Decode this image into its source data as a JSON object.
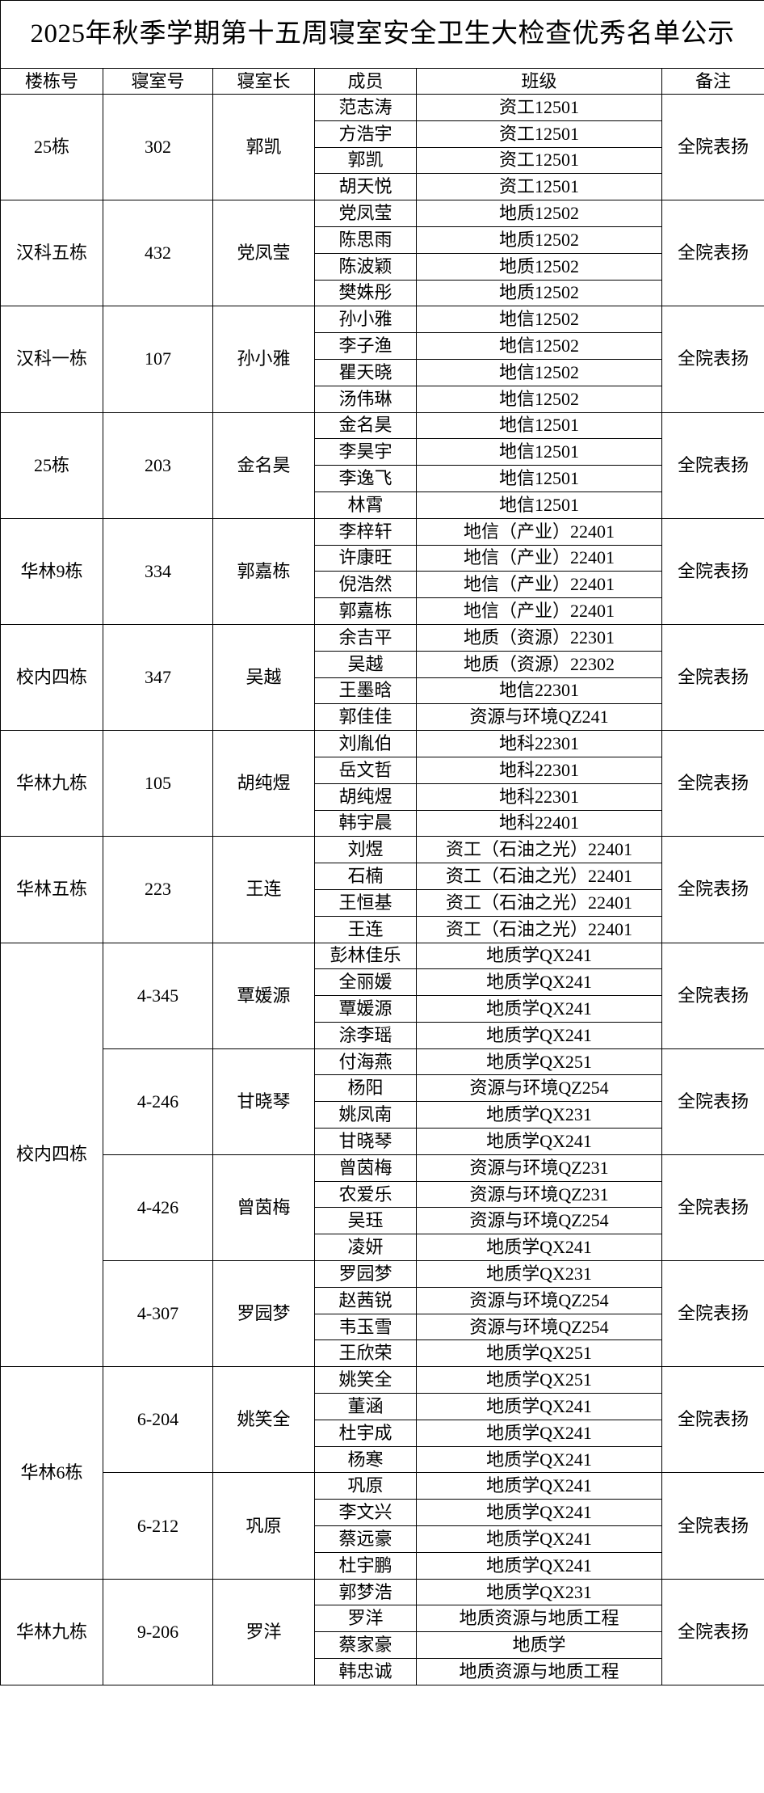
{
  "title": "2025年秋季学期第十五周寝室安全卫生大检查优秀名单公示",
  "headers": [
    "楼栋号",
    "寝室号",
    "寝室长",
    "成员",
    "班级",
    "备注"
  ],
  "buildings": [
    {
      "name": "25栋",
      "rooms": [
        {
          "number": "302",
          "leader": "郭凯",
          "remark": "全院表扬",
          "members": [
            {
              "name": "范志涛",
              "class": "资工12501"
            },
            {
              "name": "方浩宇",
              "class": "资工12501"
            },
            {
              "name": "郭凯",
              "class": "资工12501"
            },
            {
              "name": "胡天悦",
              "class": "资工12501"
            }
          ]
        }
      ]
    },
    {
      "name": "汉科五栋",
      "rooms": [
        {
          "number": "432",
          "leader": "党凤莹",
          "remark": "全院表扬",
          "members": [
            {
              "name": "党凤莹",
              "class": "地质12502"
            },
            {
              "name": "陈思雨",
              "class": "地质12502"
            },
            {
              "name": "陈波颖",
              "class": "地质12502"
            },
            {
              "name": "樊姝彤",
              "class": "地质12502"
            }
          ]
        }
      ]
    },
    {
      "name": "汉科一栋",
      "rooms": [
        {
          "number": "107",
          "leader": "孙小雅",
          "remark": "全院表扬",
          "members": [
            {
              "name": "孙小雅",
              "class": "地信12502"
            },
            {
              "name": "李子渔",
              "class": "地信12502"
            },
            {
              "name": "瞿天晓",
              "class": "地信12502"
            },
            {
              "name": "汤伟琳",
              "class": "地信12502"
            }
          ]
        }
      ]
    },
    {
      "name": "25栋",
      "rooms": [
        {
          "number": "203",
          "leader": "金名昊",
          "remark": "全院表扬",
          "members": [
            {
              "name": "金名昊",
              "class": "地信12501"
            },
            {
              "name": "李昊宇",
              "class": "地信12501"
            },
            {
              "name": "李逸飞",
              "class": "地信12501"
            },
            {
              "name": "林霄",
              "class": "地信12501"
            }
          ]
        }
      ]
    },
    {
      "name": "华林9栋",
      "rooms": [
        {
          "number": "334",
          "leader": "郭嘉栋",
          "remark": "全院表扬",
          "members": [
            {
              "name": "李梓轩",
              "class": "地信（产业）22401"
            },
            {
              "name": "许康旺",
              "class": "地信（产业）22401"
            },
            {
              "name": "倪浩然",
              "class": "地信（产业）22401"
            },
            {
              "name": "郭嘉栋",
              "class": "地信（产业）22401"
            }
          ]
        }
      ]
    },
    {
      "name": "校内四栋",
      "rooms": [
        {
          "number": "347",
          "leader": "吴越",
          "remark": "全院表扬",
          "members": [
            {
              "name": "余吉平",
              "class": "地质（资源）22301"
            },
            {
              "name": "吴越",
              "class": "地质（资源）22302"
            },
            {
              "name": "王墨晗",
              "class": "地信22301"
            },
            {
              "name": "郭佳佳",
              "class": "资源与环境QZ241"
            }
          ]
        }
      ]
    },
    {
      "name": "华林九栋",
      "rooms": [
        {
          "number": "105",
          "leader": "胡纯煜",
          "remark": "全院表扬",
          "members": [
            {
              "name": "刘胤伯",
              "class": "地科22301"
            },
            {
              "name": "岳文哲",
              "class": "地科22301"
            },
            {
              "name": "胡纯煜",
              "class": "地科22301"
            },
            {
              "name": "韩宇晨",
              "class": "地科22401"
            }
          ]
        }
      ]
    },
    {
      "name": "华林五栋",
      "rooms": [
        {
          "number": "223",
          "leader": "王连",
          "remark": "全院表扬",
          "members": [
            {
              "name": "刘煜",
              "class": "资工（石油之光）22401"
            },
            {
              "name": "石楠",
              "class": "资工（石油之光）22401"
            },
            {
              "name": "王恒基",
              "class": "资工（石油之光）22401"
            },
            {
              "name": "王连",
              "class": "资工（石油之光）22401"
            }
          ]
        }
      ]
    },
    {
      "name": "校内四栋",
      "rooms": [
        {
          "number": "4-345",
          "leader": "覃媛源",
          "remark": "全院表扬",
          "members": [
            {
              "name": "彭林佳乐",
              "class": "地质学QX241"
            },
            {
              "name": "全丽媛",
              "class": "地质学QX241"
            },
            {
              "name": "覃媛源",
              "class": "地质学QX241"
            },
            {
              "name": "涂李瑶",
              "class": "地质学QX241"
            }
          ]
        },
        {
          "number": "4-246",
          "leader": "甘晓琴",
          "remark": "全院表扬",
          "members": [
            {
              "name": "付海燕",
              "class": "地质学QX251"
            },
            {
              "name": "杨阳",
              "class": "资源与环境QZ254"
            },
            {
              "name": "姚凤南",
              "class": "地质学QX231"
            },
            {
              "name": "甘晓琴",
              "class": "地质学QX241"
            }
          ]
        },
        {
          "number": "4-426",
          "leader": "曾茵梅",
          "remark": "全院表扬",
          "members": [
            {
              "name": "曾茵梅",
              "class": "资源与环境QZ231"
            },
            {
              "name": "农爱乐",
              "class": "资源与环境QZ231"
            },
            {
              "name": "吴珏",
              "class": "资源与环境QZ254"
            },
            {
              "name": "凌妍",
              "class": "地质学QX241"
            }
          ]
        },
        {
          "number": "4-307",
          "leader": "罗园梦",
          "remark": "全院表扬",
          "members": [
            {
              "name": "罗园梦",
              "class": "地质学QX231"
            },
            {
              "name": "赵茜锐",
              "class": "资源与环境QZ254"
            },
            {
              "name": "韦玉雪",
              "class": "资源与环境QZ254"
            },
            {
              "name": "王欣荣",
              "class": "地质学QX251"
            }
          ]
        }
      ]
    },
    {
      "name": "华林6栋",
      "rooms": [
        {
          "number": "6-204",
          "leader": "姚笑全",
          "remark": "全院表扬",
          "members": [
            {
              "name": "姚笑全",
              "class": "地质学QX251"
            },
            {
              "name": "董涵",
              "class": "地质学QX241"
            },
            {
              "name": "杜宇成",
              "class": "地质学QX241"
            },
            {
              "name": "杨寒",
              "class": "地质学QX241"
            }
          ]
        },
        {
          "number": "6-212",
          "leader": "巩原",
          "remark": "全院表扬",
          "members": [
            {
              "name": "巩原",
              "class": "地质学QX241"
            },
            {
              "name": "李文兴",
              "class": "地质学QX241"
            },
            {
              "name": "蔡远豪",
              "class": "地质学QX241"
            },
            {
              "name": "杜宇鹏",
              "class": "地质学QX241"
            }
          ]
        }
      ]
    },
    {
      "name": "华林九栋",
      "rooms": [
        {
          "number": "9-206",
          "leader": "罗洋",
          "remark": "全院表扬",
          "members": [
            {
              "name": "郭梦浩",
              "class": "地质学QX231"
            },
            {
              "name": "罗洋",
              "class": "地质资源与地质工程"
            },
            {
              "name": "蔡家豪",
              "class": "地质学"
            },
            {
              "name": "韩忠诚",
              "class": "地质资源与地质工程"
            }
          ]
        }
      ]
    }
  ]
}
